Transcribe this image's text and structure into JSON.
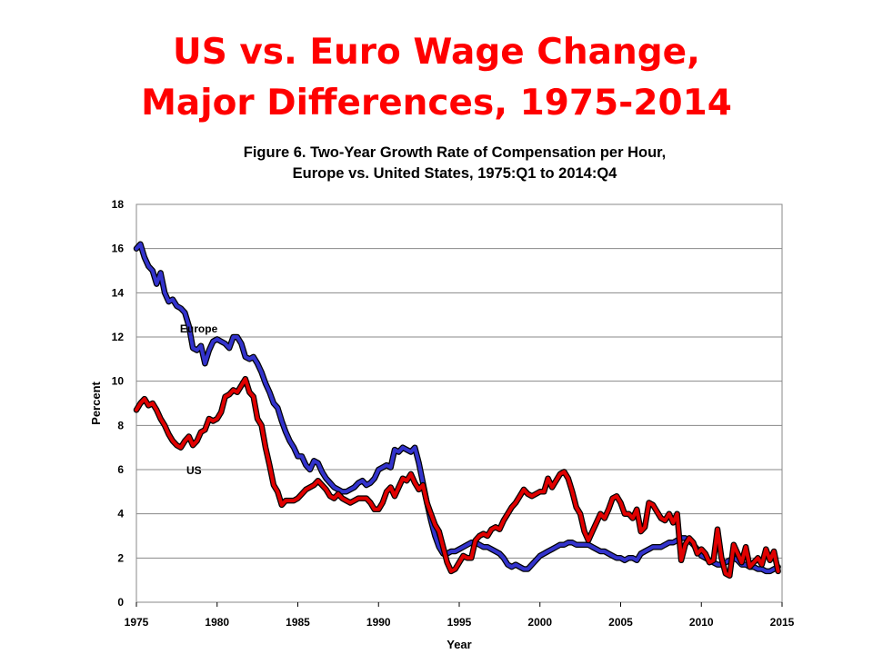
{
  "slide": {
    "title_line1": "US vs. Euro Wage Change,",
    "title_line2": "Major Differences, 1975-2014"
  },
  "colors": {
    "title": "#ff0000",
    "europe": "#3333cc",
    "us": "#e00000",
    "line_outline": "#000000",
    "grid": "#888888"
  },
  "chart_data": {
    "type": "line",
    "title": "Figure 6. Two-Year Growth Rate of Compensation per Hour,",
    "subtitle": "Europe vs. United States, 1975:Q1 to 2014:Q4",
    "xlabel": "Year",
    "ylabel": "Percent",
    "xlim": [
      1975,
      2015
    ],
    "ylim": [
      0,
      18
    ],
    "xticks": [
      1975,
      1980,
      1985,
      1990,
      1995,
      2000,
      2005,
      2010,
      2015
    ],
    "yticks": [
      0,
      2,
      4,
      6,
      8,
      10,
      12,
      14,
      16,
      18
    ],
    "grid": "horizontal",
    "legend": "inline labels",
    "series": [
      {
        "name": "Europe",
        "label_at": [
          1977.7,
          12.2
        ],
        "x": [
          1975.0,
          1975.25,
          1975.5,
          1975.75,
          1976.0,
          1976.25,
          1976.5,
          1976.75,
          1977.0,
          1977.25,
          1977.5,
          1977.75,
          1978.0,
          1978.25,
          1978.5,
          1978.75,
          1979.0,
          1979.25,
          1979.5,
          1979.75,
          1980.0,
          1980.25,
          1980.5,
          1980.75,
          1981.0,
          1981.25,
          1981.5,
          1981.75,
          1982.0,
          1982.25,
          1982.5,
          1982.75,
          1983.0,
          1983.25,
          1983.5,
          1983.75,
          1984.0,
          1984.25,
          1984.5,
          1984.75,
          1985.0,
          1985.25,
          1985.5,
          1985.75,
          1986.0,
          1986.25,
          1986.5,
          1986.75,
          1987.0,
          1987.25,
          1987.5,
          1987.75,
          1988.0,
          1988.25,
          1988.5,
          1988.75,
          1989.0,
          1989.25,
          1989.5,
          1989.75,
          1990.0,
          1990.25,
          1990.5,
          1990.75,
          1991.0,
          1991.25,
          1991.5,
          1991.75,
          1992.0,
          1992.25,
          1992.5,
          1992.75,
          1993.0,
          1993.25,
          1993.5,
          1993.75,
          1994.0,
          1994.25,
          1994.5,
          1994.75,
          1995.0,
          1995.25,
          1995.5,
          1995.75,
          1996.0,
          1996.25,
          1996.5,
          1996.75,
          1997.0,
          1997.25,
          1997.5,
          1997.75,
          1998.0,
          1998.25,
          1998.5,
          1998.75,
          1999.0,
          1999.25,
          1999.5,
          1999.75,
          2000.0,
          2000.25,
          2000.5,
          2000.75,
          2001.0,
          2001.25,
          2001.5,
          2001.75,
          2002.0,
          2002.25,
          2002.5,
          2002.75,
          2003.0,
          2003.25,
          2003.5,
          2003.75,
          2004.0,
          2004.25,
          2004.5,
          2004.75,
          2005.0,
          2005.25,
          2005.5,
          2005.75,
          2006.0,
          2006.25,
          2006.5,
          2006.75,
          2007.0,
          2007.25,
          2007.5,
          2007.75,
          2008.0,
          2008.25,
          2008.5,
          2008.75,
          2009.0,
          2009.25,
          2009.5,
          2009.75,
          2010.0,
          2010.25,
          2010.5,
          2010.75,
          2011.0,
          2011.25,
          2011.5,
          2011.75,
          2012.0,
          2012.25,
          2012.5,
          2012.75,
          2013.0,
          2013.25,
          2013.5,
          2013.75,
          2014.0,
          2014.25,
          2014.5,
          2014.75
        ],
        "y": [
          16.0,
          16.2,
          15.6,
          15.2,
          15.0,
          14.4,
          14.9,
          14.0,
          13.6,
          13.7,
          13.4,
          13.3,
          13.1,
          12.5,
          11.5,
          11.4,
          11.6,
          10.8,
          11.4,
          11.8,
          11.9,
          11.8,
          11.7,
          11.5,
          12.0,
          12.0,
          11.7,
          11.1,
          11.0,
          11.1,
          10.8,
          10.4,
          9.9,
          9.5,
          9.0,
          8.8,
          8.2,
          7.7,
          7.3,
          7.0,
          6.6,
          6.6,
          6.2,
          6.0,
          6.4,
          6.3,
          5.9,
          5.6,
          5.4,
          5.2,
          5.1,
          5.0,
          5.0,
          5.1,
          5.2,
          5.4,
          5.5,
          5.3,
          5.4,
          5.6,
          6.0,
          6.1,
          6.2,
          6.1,
          6.9,
          6.8,
          7.0,
          6.9,
          6.8,
          7.0,
          6.3,
          5.4,
          4.5,
          3.7,
          3.0,
          2.5,
          2.2,
          2.2,
          2.3,
          2.3,
          2.4,
          2.5,
          2.6,
          2.7,
          2.7,
          2.6,
          2.5,
          2.5,
          2.4,
          2.3,
          2.2,
          2.0,
          1.7,
          1.6,
          1.7,
          1.6,
          1.5,
          1.5,
          1.7,
          1.9,
          2.1,
          2.2,
          2.3,
          2.4,
          2.5,
          2.6,
          2.6,
          2.7,
          2.7,
          2.6,
          2.6,
          2.6,
          2.6,
          2.5,
          2.4,
          2.3,
          2.3,
          2.2,
          2.1,
          2.0,
          2.0,
          1.9,
          2.0,
          2.0,
          1.9,
          2.2,
          2.3,
          2.4,
          2.5,
          2.5,
          2.5,
          2.6,
          2.7,
          2.7,
          2.8,
          2.9,
          2.9,
          2.8,
          2.6,
          2.4,
          2.1,
          2.0,
          1.9,
          1.8,
          1.7,
          1.7,
          1.8,
          1.9,
          2.0,
          1.9,
          1.7,
          1.7,
          1.6,
          1.6,
          1.5,
          1.5,
          1.4,
          1.4,
          1.5,
          1.6
        ]
      },
      {
        "name": "US",
        "label_at": [
          1978.1,
          5.8
        ],
        "x": [
          1975.0,
          1975.25,
          1975.5,
          1975.75,
          1976.0,
          1976.25,
          1976.5,
          1976.75,
          1977.0,
          1977.25,
          1977.5,
          1977.75,
          1978.0,
          1978.25,
          1978.5,
          1978.75,
          1979.0,
          1979.25,
          1979.5,
          1979.75,
          1980.0,
          1980.25,
          1980.5,
          1980.75,
          1981.0,
          1981.25,
          1981.5,
          1981.75,
          1982.0,
          1982.25,
          1982.5,
          1982.75,
          1983.0,
          1983.25,
          1983.5,
          1983.75,
          1984.0,
          1984.25,
          1984.5,
          1984.75,
          1985.0,
          1985.25,
          1985.5,
          1985.75,
          1986.0,
          1986.25,
          1986.5,
          1986.75,
          1987.0,
          1987.25,
          1987.5,
          1987.75,
          1988.0,
          1988.25,
          1988.5,
          1988.75,
          1989.0,
          1989.25,
          1989.5,
          1989.75,
          1990.0,
          1990.25,
          1990.5,
          1990.75,
          1991.0,
          1991.25,
          1991.5,
          1991.75,
          1992.0,
          1992.25,
          1992.5,
          1992.75,
          1993.0,
          1993.25,
          1993.5,
          1993.75,
          1994.0,
          1994.25,
          1994.5,
          1994.75,
          1995.0,
          1995.25,
          1995.5,
          1995.75,
          1996.0,
          1996.25,
          1996.5,
          1996.75,
          1997.0,
          1997.25,
          1997.5,
          1997.75,
          1998.0,
          1998.25,
          1998.5,
          1998.75,
          1999.0,
          1999.25,
          1999.5,
          1999.75,
          2000.0,
          2000.25,
          2000.5,
          2000.75,
          2001.0,
          2001.25,
          2001.5,
          2001.75,
          2002.0,
          2002.25,
          2002.5,
          2002.75,
          2003.0,
          2003.25,
          2003.5,
          2003.75,
          2004.0,
          2004.25,
          2004.5,
          2004.75,
          2005.0,
          2005.25,
          2005.5,
          2005.75,
          2006.0,
          2006.25,
          2006.5,
          2006.75,
          2007.0,
          2007.25,
          2007.5,
          2007.75,
          2008.0,
          2008.25,
          2008.5,
          2008.75,
          2009.0,
          2009.25,
          2009.5,
          2009.75,
          2010.0,
          2010.25,
          2010.5,
          2010.75,
          2011.0,
          2011.25,
          2011.5,
          2011.75,
          2012.0,
          2012.25,
          2012.5,
          2012.75,
          2013.0,
          2013.25,
          2013.5,
          2013.75,
          2014.0,
          2014.25,
          2014.5,
          2014.75
        ],
        "y": [
          8.7,
          9.0,
          9.2,
          8.9,
          9.0,
          8.7,
          8.3,
          8.0,
          7.6,
          7.3,
          7.1,
          7.0,
          7.3,
          7.5,
          7.1,
          7.3,
          7.7,
          7.8,
          8.3,
          8.2,
          8.3,
          8.6,
          9.3,
          9.4,
          9.6,
          9.5,
          9.8,
          10.1,
          9.5,
          9.3,
          8.3,
          8.0,
          7.0,
          6.2,
          5.3,
          5.0,
          4.4,
          4.6,
          4.6,
          4.6,
          4.7,
          4.9,
          5.1,
          5.2,
          5.3,
          5.5,
          5.3,
          5.1,
          4.8,
          4.7,
          4.9,
          4.7,
          4.6,
          4.5,
          4.6,
          4.7,
          4.7,
          4.7,
          4.5,
          4.2,
          4.2,
          4.5,
          5.0,
          5.2,
          4.8,
          5.2,
          5.6,
          5.5,
          5.8,
          5.4,
          5.1,
          5.3,
          4.5,
          4.0,
          3.5,
          3.2,
          2.5,
          1.8,
          1.4,
          1.5,
          1.8,
          2.1,
          2.0,
          2.0,
          2.8,
          3.0,
          3.1,
          3.0,
          3.3,
          3.4,
          3.3,
          3.7,
          4.0,
          4.3,
          4.5,
          4.8,
          5.1,
          4.9,
          4.8,
          4.9,
          5.0,
          5.0,
          5.6,
          5.2,
          5.5,
          5.8,
          5.9,
          5.6,
          5.0,
          4.3,
          4.0,
          3.2,
          2.8,
          3.2,
          3.6,
          4.0,
          3.8,
          4.2,
          4.7,
          4.8,
          4.5,
          4.0,
          4.0,
          3.8,
          4.2,
          3.2,
          3.4,
          4.5,
          4.4,
          4.1,
          3.8,
          3.7,
          4.0,
          3.6,
          4.0,
          1.9,
          2.6,
          2.9,
          2.7,
          2.2,
          2.4,
          2.2,
          1.8,
          1.9,
          3.3,
          2.0,
          1.3,
          1.2,
          2.6,
          2.2,
          1.8,
          2.5,
          1.6,
          1.8,
          2.0,
          1.7,
          2.4,
          1.9,
          2.3,
          1.4
        ]
      }
    ]
  }
}
